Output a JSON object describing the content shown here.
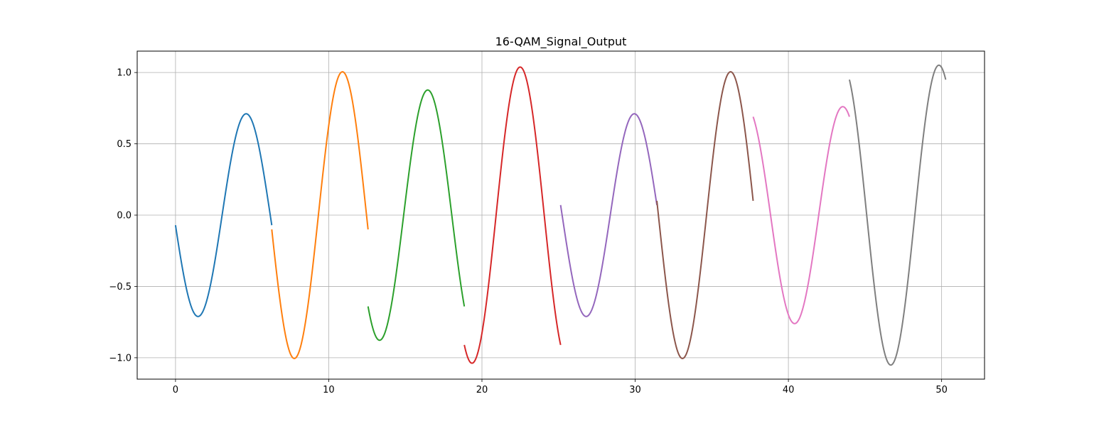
{
  "chart_data": {
    "type": "line",
    "title": "16-QAM_Signal_Output",
    "xlabel": "",
    "ylabel": "",
    "xlim": [
      -2.5,
      52.8
    ],
    "ylim": [
      -1.15,
      1.15
    ],
    "grid": true,
    "legend": "none",
    "x_ticks": [
      0,
      10,
      20,
      30,
      40,
      50
    ],
    "x_tick_labels": [
      "0",
      "10",
      "20",
      "30",
      "40",
      "50"
    ],
    "y_ticks": [
      -1.0,
      -0.5,
      0.0,
      0.5,
      1.0
    ],
    "y_tick_labels": [
      "−1.0",
      "−0.5",
      "0.0",
      "0.5",
      "1.0"
    ],
    "carrier_frequency_rad_per_unit": 1.0,
    "segment_length": 6.2832,
    "series": [
      {
        "x_start": 0.0,
        "x_end": 6.2832,
        "I": -0.0707,
        "Q": 0.7071,
        "color": "#1f77b4"
      },
      {
        "x_start": 6.2832,
        "x_end": 12.5664,
        "I": -0.1,
        "Q": 1.0,
        "color": "#ff7f0e"
      },
      {
        "x_start": 12.5664,
        "x_end": 18.8496,
        "I": -0.64,
        "Q": 0.6,
        "color": "#2ca02c"
      },
      {
        "x_start": 18.8496,
        "x_end": 25.1327,
        "I": -0.91,
        "Q": 0.5,
        "color": "#d62728"
      },
      {
        "x_start": 25.1327,
        "x_end": 31.4159,
        "I": 0.0707,
        "Q": 0.7071,
        "color": "#9467bd"
      },
      {
        "x_start": 31.4159,
        "x_end": 37.6991,
        "I": 0.1,
        "Q": 1.0,
        "color": "#8c564b"
      },
      {
        "x_start": 37.6991,
        "x_end": 43.9823,
        "I": 0.69,
        "Q": 0.32,
        "color": "#e377c2"
      },
      {
        "x_start": 43.9823,
        "x_end": 50.2655,
        "I": 0.95,
        "Q": 0.45,
        "color": "#7f7f7f"
      }
    ]
  }
}
